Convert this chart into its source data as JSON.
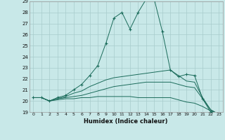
{
  "xlabel": "Humidex (Indice chaleur)",
  "bg_color": "#c8e8e8",
  "grid_color": "#a8cccc",
  "line_color": "#1a6b5a",
  "xlim": [
    -0.5,
    23.5
  ],
  "ylim": [
    19,
    29
  ],
  "xticks": [
    0,
    1,
    2,
    3,
    4,
    5,
    6,
    7,
    8,
    9,
    10,
    11,
    12,
    13,
    14,
    15,
    16,
    17,
    18,
    19,
    20,
    21,
    22,
    23
  ],
  "yticks": [
    19,
    20,
    21,
    22,
    23,
    24,
    25,
    26,
    27,
    28,
    29
  ],
  "series": [
    {
      "x": [
        0,
        1,
        2,
        3,
        4,
        5,
        6,
        7,
        8,
        9,
        10,
        11,
        12,
        13,
        14,
        15,
        16,
        17,
        18,
        19,
        20,
        21,
        22,
        23
      ],
      "y": [
        20.3,
        20.3,
        20.0,
        20.3,
        20.5,
        21.0,
        21.5,
        22.3,
        23.2,
        25.2,
        27.5,
        28.0,
        26.5,
        28.0,
        29.2,
        29.2,
        26.3,
        22.8,
        22.2,
        22.4,
        22.3,
        20.2,
        19.0,
        18.8
      ],
      "marker": true
    },
    {
      "x": [
        0,
        1,
        2,
        3,
        4,
        5,
        6,
        7,
        8,
        9,
        10,
        11,
        12,
        13,
        14,
        15,
        16,
        17,
        18,
        19,
        20,
        21,
        22,
        23
      ],
      "y": [
        20.3,
        20.3,
        20.0,
        20.2,
        20.4,
        20.7,
        20.9,
        21.3,
        21.6,
        21.9,
        22.1,
        22.2,
        22.3,
        22.4,
        22.5,
        22.6,
        22.7,
        22.8,
        22.3,
        21.8,
        21.7,
        20.3,
        19.2,
        18.8
      ],
      "marker": false
    },
    {
      "x": [
        0,
        1,
        2,
        3,
        4,
        5,
        6,
        7,
        8,
        9,
        10,
        11,
        12,
        13,
        14,
        15,
        16,
        17,
        18,
        19,
        20,
        21,
        22,
        23
      ],
      "y": [
        20.3,
        20.3,
        20.0,
        20.2,
        20.3,
        20.4,
        20.5,
        20.7,
        20.9,
        21.1,
        21.3,
        21.4,
        21.5,
        21.6,
        21.7,
        21.7,
        21.7,
        21.7,
        21.5,
        21.3,
        21.2,
        20.2,
        19.2,
        18.8
      ],
      "marker": false
    },
    {
      "x": [
        0,
        1,
        2,
        3,
        4,
        5,
        6,
        7,
        8,
        9,
        10,
        11,
        12,
        13,
        14,
        15,
        16,
        17,
        18,
        19,
        20,
        21,
        22,
        23
      ],
      "y": [
        20.3,
        20.3,
        20.0,
        20.1,
        20.2,
        20.2,
        20.3,
        20.3,
        20.4,
        20.4,
        20.4,
        20.4,
        20.4,
        20.3,
        20.3,
        20.3,
        20.3,
        20.3,
        20.1,
        19.9,
        19.8,
        19.5,
        19.1,
        18.8
      ],
      "marker": false
    }
  ]
}
